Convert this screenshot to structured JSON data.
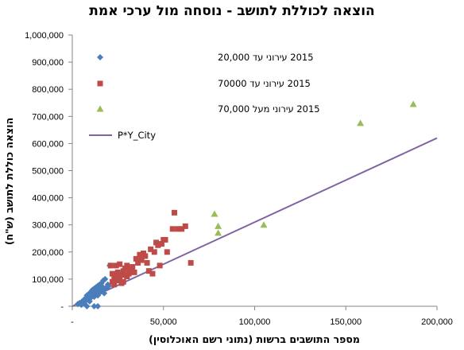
{
  "chart_data": {
    "type": "scatter",
    "title": "הוצאה לכוללת לתושב - נוסחה מול ערכי אמת",
    "xlabel": "מספר התושבים ברשות (נתוני רשם האוכלוסין)",
    "ylabel": "הוצאה כוללת לתושב (ש\"ח)",
    "xlim": [
      0,
      200000
    ],
    "ylim": [
      0,
      1000000
    ],
    "x_ticks": [
      0,
      50000,
      100000,
      150000,
      200000
    ],
    "x_tick_labels": [
      "-",
      "50,000",
      "100,000",
      "150,000",
      "200,000"
    ],
    "y_ticks": [
      0,
      100000,
      200000,
      300000,
      400000,
      500000,
      600000,
      700000,
      800000,
      900000,
      1000000
    ],
    "y_tick_labels": [
      "-",
      "100,000",
      "200,000",
      "300,000",
      "400,000",
      "500,000",
      "600,000",
      "700,000",
      "800,000",
      "900,000",
      "1,000,000"
    ],
    "grid": false,
    "legend_position": "top-left",
    "series": [
      {
        "name": "2015 עירוני עד 20,000",
        "marker": "diamond",
        "color": "#4a7ebb",
        "points": [
          [
            3000,
            8000
          ],
          [
            4000,
            12000
          ],
          [
            5000,
            15000
          ],
          [
            5500,
            10000
          ],
          [
            6000,
            20000
          ],
          [
            6500,
            25000
          ],
          [
            7000,
            18000
          ],
          [
            7500,
            30000
          ],
          [
            8000,
            28000
          ],
          [
            8000,
            40000
          ],
          [
            8500,
            35000
          ],
          [
            9000,
            22000
          ],
          [
            9000,
            45000
          ],
          [
            9500,
            38000
          ],
          [
            10000,
            50000
          ],
          [
            10000,
            30000
          ],
          [
            10500,
            55000
          ],
          [
            11000,
            42000
          ],
          [
            11000,
            60000
          ],
          [
            11500,
            48000
          ],
          [
            12000,
            65000
          ],
          [
            12000,
            35000
          ],
          [
            12500,
            52000
          ],
          [
            13000,
            70000
          ],
          [
            13000,
            45000
          ],
          [
            13500,
            58000
          ],
          [
            14000,
            75000
          ],
          [
            14000,
            40000
          ],
          [
            14500,
            62000
          ],
          [
            15000,
            80000
          ],
          [
            15000,
            50000
          ],
          [
            15500,
            68000
          ],
          [
            16000,
            85000
          ],
          [
            16000,
            55000
          ],
          [
            16500,
            72000
          ],
          [
            17000,
            95000
          ],
          [
            17000,
            60000
          ],
          [
            17500,
            48000
          ],
          [
            18000,
            100000
          ],
          [
            18000,
            65000
          ],
          [
            12000,
            0
          ],
          [
            14000,
            0
          ],
          [
            8000,
            0
          ],
          [
            5000,
            5000
          ],
          [
            19000,
            70000
          ],
          [
            20000,
            75000
          ],
          [
            20500,
            150000
          ],
          [
            19500,
            80000
          ],
          [
            6500,
            12000
          ],
          [
            9500,
            18000
          ]
        ]
      },
      {
        "name": "2015 עירוני עד 70000",
        "marker": "square",
        "color": "#be4b48",
        "points": [
          [
            21000,
            150000
          ],
          [
            22000,
            90000
          ],
          [
            22000,
            120000
          ],
          [
            23000,
            80000
          ],
          [
            23000,
            105000
          ],
          [
            24000,
            110000
          ],
          [
            24000,
            150000
          ],
          [
            25000,
            95000
          ],
          [
            25000,
            125000
          ],
          [
            26000,
            100000
          ],
          [
            26000,
            155000
          ],
          [
            27000,
            85000
          ],
          [
            27000,
            115000
          ],
          [
            28000,
            130000
          ],
          [
            28000,
            90000
          ],
          [
            29000,
            140000
          ],
          [
            30000,
            110000
          ],
          [
            30000,
            150000
          ],
          [
            31000,
            120000
          ],
          [
            32000,
            135000
          ],
          [
            33000,
            145000
          ],
          [
            34000,
            125000
          ],
          [
            35000,
            175000
          ],
          [
            36000,
            160000
          ],
          [
            37000,
            190000
          ],
          [
            38000,
            170000
          ],
          [
            39000,
            195000
          ],
          [
            40000,
            185000
          ],
          [
            41000,
            160000
          ],
          [
            42000,
            130000
          ],
          [
            43000,
            210000
          ],
          [
            44000,
            120000
          ],
          [
            45000,
            200000
          ],
          [
            46000,
            235000
          ],
          [
            47000,
            225000
          ],
          [
            48000,
            150000
          ],
          [
            49000,
            230000
          ],
          [
            50000,
            245000
          ],
          [
            51000,
            245000
          ],
          [
            52000,
            200000
          ],
          [
            55000,
            285000
          ],
          [
            56000,
            345000
          ],
          [
            58000,
            285000
          ],
          [
            60000,
            285000
          ],
          [
            62000,
            295000
          ],
          [
            65000,
            160000
          ]
        ]
      },
      {
        "name": "2015 עירוני מעל 70,000",
        "marker": "triangle",
        "color": "#9bbb59",
        "points": [
          [
            78000,
            340000
          ],
          [
            80000,
            295000
          ],
          [
            80000,
            270000
          ],
          [
            105000,
            300000
          ],
          [
            158000,
            675000
          ],
          [
            187000,
            745000
          ]
        ]
      }
    ],
    "line": {
      "name": "P*Y_City",
      "color": "#8064a2",
      "x": [
        0,
        200000
      ],
      "y": [
        0,
        620000
      ]
    }
  }
}
